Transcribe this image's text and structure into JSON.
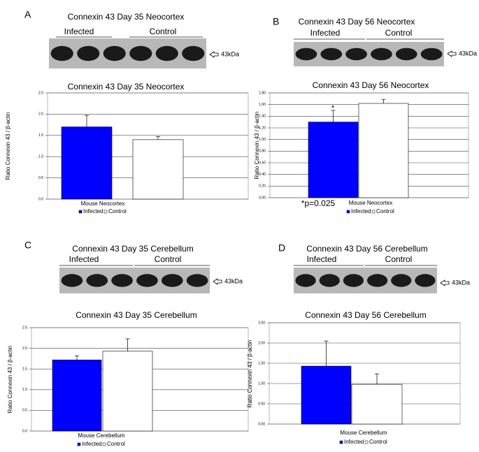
{
  "panels": [
    {
      "letter": "A",
      "blot_title": "Connexin 43 Day 35 Neocortex",
      "groups": [
        "Infected",
        "Control"
      ],
      "marker": "43kDa"
    },
    {
      "letter": "B",
      "blot_title": "Connexin 43 Day 56 Neocortex",
      "groups": [
        "Infected",
        "Control"
      ],
      "marker": "43kDa"
    },
    {
      "letter": "C",
      "blot_title": "Connexin 43 Day 35 Cerebellum",
      "groups": [
        "Infected",
        "Control"
      ],
      "marker": "43kDa"
    },
    {
      "letter": "D",
      "blot_title": "Connexin 43 Day 56 Cerebellum",
      "groups": [
        "Infected",
        "Control"
      ],
      "marker": "43kDa"
    }
  ],
  "chart_data": [
    {
      "type": "bar",
      "title": "Connexin 43 Day 35 Neocortex",
      "y_label": "Ratio Connexin 43 / β-actin",
      "categories": [
        "Mouse Neocortex"
      ],
      "series": [
        {
          "name": "Infected",
          "color": "#0000ff",
          "values": [
            1.7
          ],
          "errors": [
            0.27
          ]
        },
        {
          "name": "Control",
          "color": "#ffffff",
          "values": [
            1.4
          ],
          "errors": [
            0.07
          ]
        }
      ],
      "ylim": [
        0,
        2.5
      ],
      "yticks": [
        {
          "value": 0,
          "label": "0.0"
        },
        0.5,
        {
          "value": 1,
          "label": "1.0"
        },
        1.5,
        {
          "value": 2,
          "label": "2.0"
        },
        2.5
      ],
      "grid": true
    },
    {
      "type": "bar",
      "title": "Connexin 43 Day 56 Neocortex",
      "y_label": "Ratio Connexin 43 / β-actin",
      "categories": [
        "Mouse Neocortex"
      ],
      "series": [
        {
          "name": "Infected",
          "color": "#0000ff",
          "values": [
            1.3
          ],
          "errors": [
            0.2
          ]
        },
        {
          "name": "Control",
          "color": "#ffffff",
          "values": [
            1.62
          ],
          "errors": [
            0.07
          ]
        }
      ],
      "ylim": [
        0,
        1.8
      ],
      "yticks": [
        {
          "value": 0,
          "label": "0.00"
        },
        {
          "value": 0.2,
          "label": "0.20"
        },
        {
          "value": 0.4,
          "label": "0.40"
        },
        {
          "value": 0.6,
          "label": "0.60"
        },
        {
          "value": 0.8,
          "label": "0.80"
        },
        {
          "value": 1,
          "label": "1.00"
        },
        {
          "value": 1.2,
          "label": "1.20"
        },
        {
          "value": 1.4,
          "label": "1.40"
        },
        {
          "value": 1.6,
          "label": "1.60"
        },
        {
          "value": 1.8,
          "label": "1.80"
        }
      ],
      "grid": true,
      "annotations": [
        "*",
        "*p=0.025"
      ]
    },
    {
      "type": "bar",
      "title": "Connexin 43 Day 35 Cerebellum",
      "y_label": "Ratio Connexin 43 / β-actin",
      "categories": [
        "Mouse Cerebellum"
      ],
      "series": [
        {
          "name": "Infected",
          "color": "#0000ff",
          "values": [
            1.72
          ],
          "errors": [
            0.1
          ]
        },
        {
          "name": "Control",
          "color": "#ffffff",
          "values": [
            1.93
          ],
          "errors": [
            0.3
          ]
        }
      ],
      "ylim": [
        0,
        2.5
      ],
      "yticks": [
        {
          "value": 0,
          "label": "0.0"
        },
        0.5,
        {
          "value": 1,
          "label": "1.0"
        },
        1.5,
        {
          "value": 2,
          "label": "2.0"
        },
        2.5
      ],
      "grid": true
    },
    {
      "type": "bar",
      "title": "Connexin 43 Day 56 Cerebellum",
      "y_label": "Ratio Connexin 43 / β-actin",
      "categories": [
        "Mouse Cerebellum"
      ],
      "series": [
        {
          "name": "Infected",
          "color": "#0000ff",
          "values": [
            1.43
          ],
          "errors": [
            0.62
          ]
        },
        {
          "name": "Control",
          "color": "#ffffff",
          "values": [
            0.98
          ],
          "errors": [
            0.26
          ]
        }
      ],
      "ylim": [
        0,
        2.5
      ],
      "yticks": [
        {
          "value": 0,
          "label": "0.00"
        },
        {
          "value": 0.5,
          "label": "0.50"
        },
        {
          "value": 1,
          "label": "1.00"
        },
        {
          "value": 1.5,
          "label": "1.50"
        },
        {
          "value": 2,
          "label": "2.00"
        },
        {
          "value": 2.5,
          "label": "2.50"
        }
      ],
      "grid": true
    }
  ]
}
